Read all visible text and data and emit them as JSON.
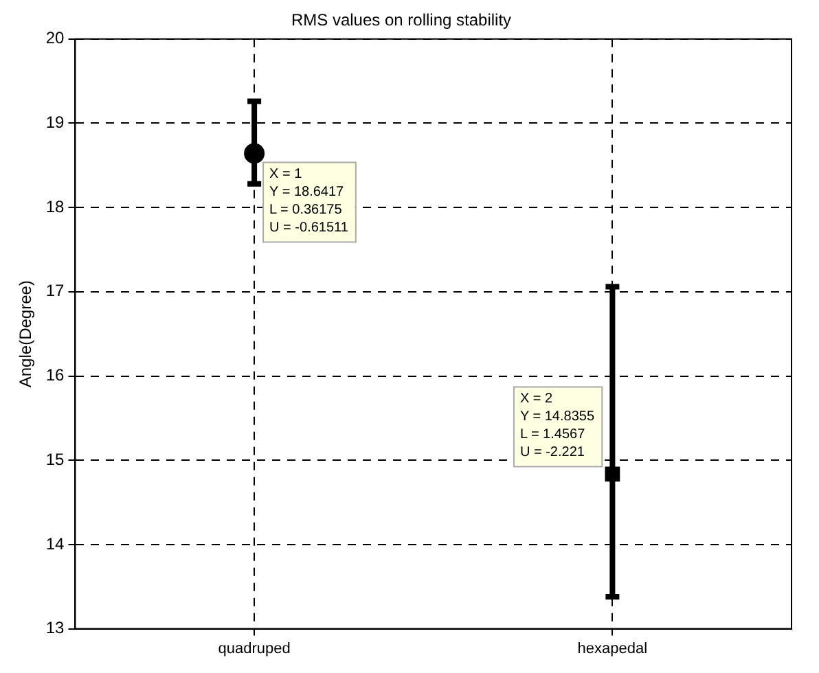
{
  "chart_data": {
    "type": "scatter",
    "title": "RMS values on rolling stability",
    "ylabel": "Angle(Degree)",
    "categories": [
      "quadruped",
      "hexapedal"
    ],
    "series": [
      {
        "color": "#000000",
        "values": [
          18.6417,
          null
        ],
        "marker": "circle",
        "errors": [
          [
            18.28,
            19.26
          ],
          null
        ]
      },
      {
        "color": "#000000",
        "values": [
          null,
          14.8355
        ],
        "marker": "square",
        "errors": [
          null,
          [
            13.38,
            17.06
          ]
        ]
      }
    ],
    "ylim": [
      13,
      20
    ],
    "yticks": [
      13,
      14,
      15,
      16,
      17,
      18,
      19,
      20
    ],
    "grid": true,
    "line_style": "dashed",
    "annotations": [
      {
        "text": "X = 1\nY = 18.6417\nL = 0.36175\nU = -0.61511",
        "x": "quadruped",
        "y": 18.6417
      },
      {
        "text": "X = 2\nY = 14.8355\nL = 1.4567\nU = -2.221",
        "x": "hexapedal",
        "y": 14.8355
      }
    ]
  }
}
